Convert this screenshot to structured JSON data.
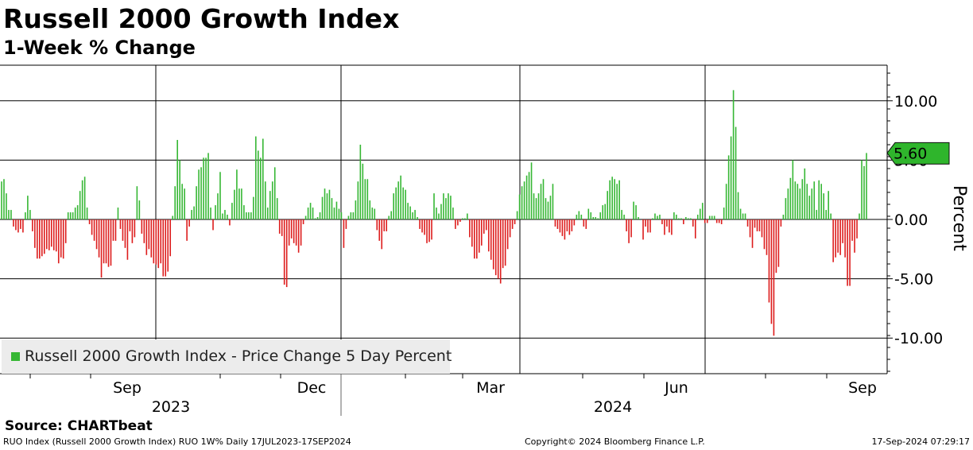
{
  "chart_data": {
    "type": "bar",
    "title": "Russell 2000 Growth Index",
    "subtitle": "1-Week % Change",
    "ylabel": "Percent",
    "ylim": [
      -13,
      13
    ],
    "y_ticks": [
      {
        "value": 10,
        "label": "10.00"
      },
      {
        "value": 5,
        "label": "5.00"
      },
      {
        "value": 0,
        "label": "0.00"
      },
      {
        "value": -5,
        "label": "-5.00"
      },
      {
        "value": -10,
        "label": "-10.00"
      }
    ],
    "month_ticks": [
      "Sep",
      "Dec",
      "Mar",
      "Jun",
      "Sep"
    ],
    "year_labels": [
      "2023",
      "2024"
    ],
    "last_value": 5.6,
    "last_value_label": "5.60",
    "positive_color": "#36b734",
    "negative_color": "#dd1c1c",
    "series": [
      {
        "name": "Russell 2000 Growth Index - Price Change 5 Day Percent",
        "values": [
          3.2,
          3.4,
          2.2,
          0.8,
          0.8,
          -0.6,
          -0.9,
          -1.1,
          -0.8,
          -1.1,
          0.6,
          2.0,
          0.8,
          -1.0,
          -2.4,
          -3.3,
          -3.3,
          -3.1,
          -2.9,
          -2.5,
          -2.6,
          -2.3,
          -2.6,
          -2.7,
          -3.7,
          -3.2,
          -3.3,
          -2.0,
          0.6,
          0.6,
          0.6,
          1.0,
          1.2,
          2.4,
          3.3,
          3.6,
          1.0,
          -0.4,
          -1.3,
          -1.8,
          -2.5,
          -3.2,
          -4.9,
          -3.7,
          -3.7,
          -4.0,
          -3.9,
          -1.8,
          -1.8,
          1.0,
          -0.8,
          -1.8,
          -2.4,
          -3.4,
          -1.0,
          -2.0,
          -1.5,
          2.8,
          1.6,
          -1.2,
          -2.0,
          -3.0,
          -2.5,
          -3.2,
          -3.7,
          -3.8,
          -4.1,
          -3.7,
          -4.8,
          -4.8,
          -4.4,
          -3.1,
          0.3,
          2.8,
          6.7,
          5.0,
          3.0,
          2.6,
          -1.8,
          -0.6,
          0.8,
          1.1,
          2.8,
          4.2,
          4.4,
          5.2,
          5.2,
          5.6,
          1.0,
          -0.9,
          1.2,
          2.2,
          4.0,
          0.5,
          0.8,
          0.4,
          -0.5,
          1.4,
          2.5,
          4.2,
          2.6,
          2.6,
          1.2,
          0.6,
          0.6,
          0.6,
          1.9,
          7.0,
          5.8,
          5.2,
          6.8,
          3.2,
          1.0,
          2.4,
          3.2,
          4.4,
          1.8,
          -1.2,
          -1.4,
          -5.5,
          -5.7,
          -2.2,
          -1.6,
          -2.0,
          -2.2,
          -2.8,
          -2.2,
          -0.4,
          0.3,
          1.0,
          1.4,
          1.0,
          0.1,
          0.2,
          0.6,
          1.9,
          2.6,
          2.2,
          2.5,
          1.8,
          1.0,
          1.5,
          0.9,
          0.6,
          -2.4,
          -0.8,
          0.3,
          0.6,
          0.6,
          1.6,
          3.2,
          6.3,
          4.7,
          3.4,
          3.4,
          1.6,
          1.0,
          0.9,
          -0.9,
          -1.8,
          -2.5,
          -1.0,
          -1.0,
          0.3,
          0.7,
          2.2,
          2.7,
          3.2,
          3.7,
          2.7,
          2.5,
          1.4,
          1.1,
          0.6,
          0.8,
          0.2,
          -0.8,
          -1.1,
          -1.3,
          -2.0,
          -1.9,
          -1.7,
          2.2,
          1.0,
          0.5,
          1.3,
          2.2,
          1.8,
          2.2,
          2.0,
          1.0,
          -0.8,
          -0.5,
          -0.2,
          0.1,
          0.1,
          0.5,
          -1.5,
          -2.3,
          -3.3,
          -3.3,
          -2.8,
          -2.2,
          -1.2,
          -0.9,
          -2.7,
          -3.4,
          -4.2,
          -4.7,
          -5.0,
          -5.4,
          -4.1,
          -3.9,
          -2.5,
          -1.5,
          -0.8,
          -0.4,
          0.7,
          2.1,
          2.8,
          3.2,
          3.7,
          4.0,
          4.8,
          2.2,
          1.8,
          2.2,
          3.0,
          3.4,
          1.8,
          1.5,
          2.0,
          3.0,
          -0.6,
          -0.8,
          -1.1,
          -1.4,
          -1.7,
          -1.0,
          -1.3,
          -1.0,
          -0.5,
          0.4,
          0.7,
          0.4,
          -0.6,
          -0.8,
          0.9,
          0.6,
          0.2,
          0.2,
          0.1,
          0.6,
          1.2,
          1.3,
          2.4,
          3.3,
          3.6,
          3.4,
          3.0,
          3.3,
          0.8,
          0.4,
          -1.0,
          -2.0,
          -1.5,
          1.5,
          1.2,
          0.2,
          0.0,
          -1.7,
          -0.6,
          -1.1,
          -1.1,
          0.1,
          0.5,
          0.3,
          0.4,
          -0.4,
          -1.3,
          -0.6,
          -1.1,
          -1.3,
          0.6,
          0.4,
          0.1,
          0.1,
          -0.4,
          0.2,
          0.1,
          0.1,
          -0.6,
          -1.6,
          0.4,
          0.9,
          1.4,
          -0.3,
          -0.3,
          0.3,
          0.3,
          0.3,
          -0.3,
          -0.3,
          -0.4,
          1.0,
          3.0,
          5.4,
          7.0,
          10.9,
          7.8,
          2.3,
          0.9,
          0.5,
          0.5,
          -0.6,
          -1.5,
          -2.4,
          -0.7,
          -1.0,
          -1.0,
          -1.5,
          -2.5,
          -3.0,
          -7.0,
          -8.8,
          -9.8,
          -4.5,
          -4.0,
          -0.6,
          0.4,
          1.8,
          2.6,
          3.5,
          5.0,
          3.2,
          3.0,
          2.6,
          3.4,
          4.3,
          3.0,
          2.0,
          2.6,
          3.2,
          0.8,
          3.3,
          3.0,
          2.2,
          0.8,
          2.4,
          0.5,
          -3.6,
          -3.2,
          -2.8,
          -3.0,
          -2.0,
          -3.2,
          -5.6,
          -5.6,
          -1.8,
          -2.8,
          -1.6,
          0.5,
          5.0,
          4.5,
          5.6
        ]
      }
    ]
  },
  "legend": {
    "label": "Russell 2000 Growth Index - Price Change 5 Day Percent"
  },
  "source": "Source: CHARTbeat",
  "footer": {
    "left": "RUO Index (Russell 2000 Growth Index) RUO 1W% Daily 17JUL2023-17SEP2024",
    "middle": "Copyright© 2024 Bloomberg Finance L.P.",
    "right": "17-Sep-2024 07:29:17"
  }
}
